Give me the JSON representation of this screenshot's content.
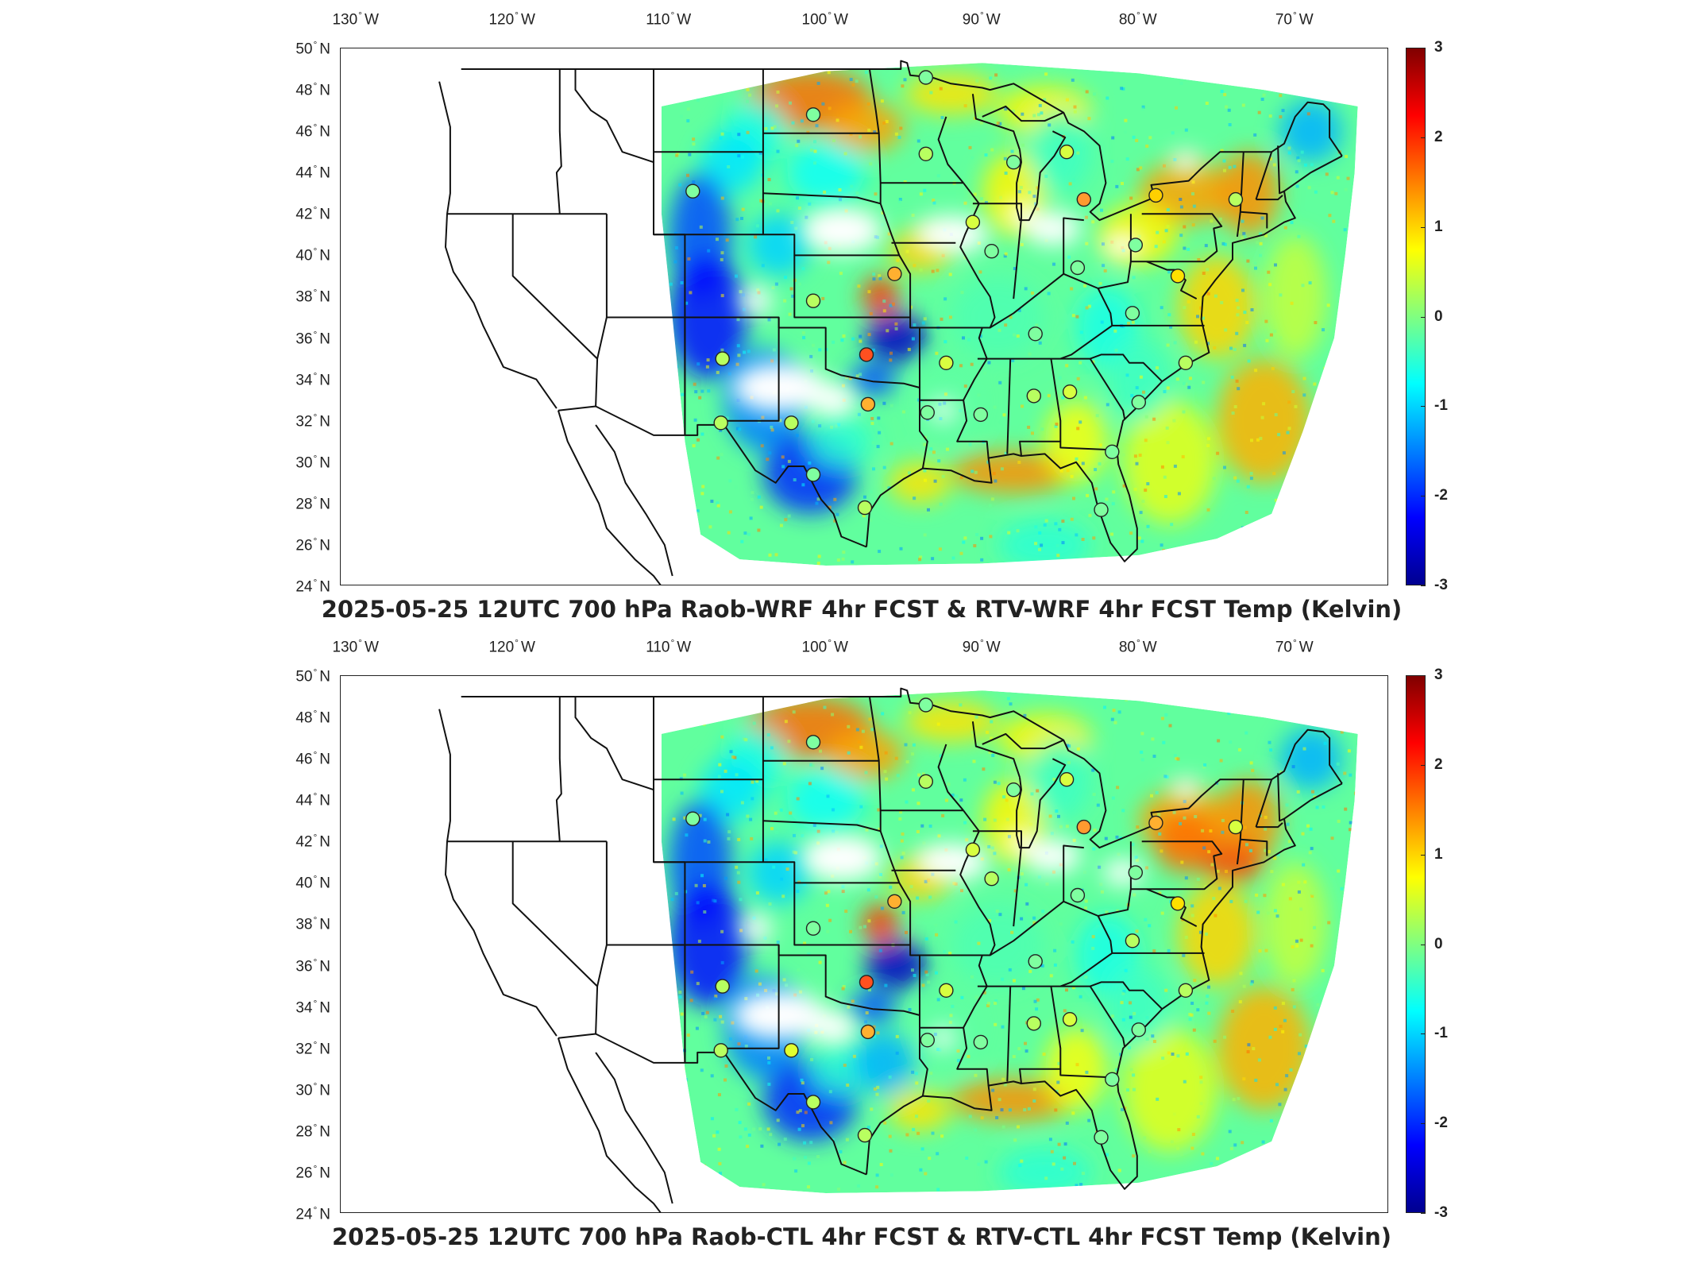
{
  "panels": [
    {
      "title": "2025-05-25 12UTC 700 hPa Raob-WRF 4hr FCST & RTV-WRF 4hr FCST Temp (Kelvin)",
      "stations": [
        {
          "lon": -100.8,
          "lat": 46.8,
          "color": "#7fffa0"
        },
        {
          "lon": -93.6,
          "lat": 48.6,
          "color": "#7fffa0"
        },
        {
          "lon": -93.6,
          "lat": 44.9,
          "color": "#b8ff60"
        },
        {
          "lon": -88.0,
          "lat": 44.5,
          "color": "#7fffa0"
        },
        {
          "lon": -84.6,
          "lat": 45.0,
          "color": "#d8ff40"
        },
        {
          "lon": -83.5,
          "lat": 42.7,
          "color": "#ff9a30"
        },
        {
          "lon": -78.9,
          "lat": 42.9,
          "color": "#ffd000"
        },
        {
          "lon": -73.8,
          "lat": 42.7,
          "color": "#b8ff60"
        },
        {
          "lon": -108.5,
          "lat": 43.1,
          "color": "#7fffa0"
        },
        {
          "lon": -90.6,
          "lat": 41.6,
          "color": "#d8ff40"
        },
        {
          "lon": -89.4,
          "lat": 40.2,
          "color": "#7fffa0"
        },
        {
          "lon": -80.2,
          "lat": 40.5,
          "color": "#7fffa0"
        },
        {
          "lon": -77.5,
          "lat": 39.0,
          "color": "#ffe000"
        },
        {
          "lon": -95.6,
          "lat": 39.1,
          "color": "#ffb030"
        },
        {
          "lon": -100.8,
          "lat": 37.8,
          "color": "#b8ff60"
        },
        {
          "lon": -86.6,
          "lat": 36.2,
          "color": "#7fffa0"
        },
        {
          "lon": -80.4,
          "lat": 37.2,
          "color": "#7fffa0"
        },
        {
          "lon": -83.9,
          "lat": 39.4,
          "color": "#7fffa0"
        },
        {
          "lon": -97.4,
          "lat": 35.2,
          "color": "#ff5020"
        },
        {
          "lon": -106.6,
          "lat": 35.0,
          "color": "#b8ff60"
        },
        {
          "lon": -92.3,
          "lat": 34.8,
          "color": "#d8ff40"
        },
        {
          "lon": -77.0,
          "lat": 34.8,
          "color": "#b8ff60"
        },
        {
          "lon": -97.3,
          "lat": 32.8,
          "color": "#ffb030"
        },
        {
          "lon": -102.2,
          "lat": 31.9,
          "color": "#b8ff60"
        },
        {
          "lon": -106.7,
          "lat": 31.9,
          "color": "#b8ff60"
        },
        {
          "lon": -93.5,
          "lat": 32.4,
          "color": "#7fffa0"
        },
        {
          "lon": -90.1,
          "lat": 32.3,
          "color": "#7fffa0"
        },
        {
          "lon": -86.7,
          "lat": 33.2,
          "color": "#b8ff60"
        },
        {
          "lon": -84.4,
          "lat": 33.4,
          "color": "#d8ff40"
        },
        {
          "lon": -80.0,
          "lat": 32.9,
          "color": "#7fffa0"
        },
        {
          "lon": -81.7,
          "lat": 30.5,
          "color": "#7fffa0"
        },
        {
          "lon": -100.8,
          "lat": 29.4,
          "color": "#7fffa0"
        },
        {
          "lon": -97.5,
          "lat": 27.8,
          "color": "#b8ff60"
        },
        {
          "lon": -82.4,
          "lat": 27.7,
          "color": "#7fffa0"
        }
      ]
    },
    {
      "title": "2025-05-25 12UTC 700 hPa Raob-CTL 4hr FCST & RTV-CTL 4hr FCST Temp (Kelvin)",
      "stations": [
        {
          "lon": -100.8,
          "lat": 46.8,
          "color": "#7fffa0"
        },
        {
          "lon": -93.6,
          "lat": 48.6,
          "color": "#7fffa0"
        },
        {
          "lon": -93.6,
          "lat": 44.9,
          "color": "#b8ff60"
        },
        {
          "lon": -88.0,
          "lat": 44.5,
          "color": "#7fffa0"
        },
        {
          "lon": -84.6,
          "lat": 45.0,
          "color": "#d8ff40"
        },
        {
          "lon": -83.5,
          "lat": 42.7,
          "color": "#ff9a30"
        },
        {
          "lon": -78.9,
          "lat": 42.9,
          "color": "#ffb030"
        },
        {
          "lon": -73.8,
          "lat": 42.7,
          "color": "#d8ff40"
        },
        {
          "lon": -108.5,
          "lat": 43.1,
          "color": "#7fffa0"
        },
        {
          "lon": -90.6,
          "lat": 41.6,
          "color": "#d8ff40"
        },
        {
          "lon": -89.4,
          "lat": 40.2,
          "color": "#b8ff60"
        },
        {
          "lon": -80.2,
          "lat": 40.5,
          "color": "#7fffa0"
        },
        {
          "lon": -77.5,
          "lat": 39.0,
          "color": "#ffe000"
        },
        {
          "lon": -95.6,
          "lat": 39.1,
          "color": "#ffb030"
        },
        {
          "lon": -100.8,
          "lat": 37.8,
          "color": "#7fffa0"
        },
        {
          "lon": -86.6,
          "lat": 36.2,
          "color": "#7fffa0"
        },
        {
          "lon": -80.4,
          "lat": 37.2,
          "color": "#b8ff60"
        },
        {
          "lon": -83.9,
          "lat": 39.4,
          "color": "#7fffa0"
        },
        {
          "lon": -97.4,
          "lat": 35.2,
          "color": "#ff5020"
        },
        {
          "lon": -106.6,
          "lat": 35.0,
          "color": "#b8ff60"
        },
        {
          "lon": -92.3,
          "lat": 34.8,
          "color": "#d8ff40"
        },
        {
          "lon": -77.0,
          "lat": 34.8,
          "color": "#b8ff60"
        },
        {
          "lon": -97.3,
          "lat": 32.8,
          "color": "#ffb030"
        },
        {
          "lon": -102.2,
          "lat": 31.9,
          "color": "#e0ff30"
        },
        {
          "lon": -106.7,
          "lat": 31.9,
          "color": "#b8ff60"
        },
        {
          "lon": -93.5,
          "lat": 32.4,
          "color": "#7fffa0"
        },
        {
          "lon": -90.1,
          "lat": 32.3,
          "color": "#7fffa0"
        },
        {
          "lon": -86.7,
          "lat": 33.2,
          "color": "#b8ff60"
        },
        {
          "lon": -84.4,
          "lat": 33.4,
          "color": "#d8ff40"
        },
        {
          "lon": -80.0,
          "lat": 32.9,
          "color": "#7fffa0"
        },
        {
          "lon": -81.7,
          "lat": 30.5,
          "color": "#7fffa0"
        },
        {
          "lon": -100.8,
          "lat": 29.4,
          "color": "#b8ff60"
        },
        {
          "lon": -97.5,
          "lat": 27.8,
          "color": "#b8ff60"
        },
        {
          "lon": -82.4,
          "lat": 27.7,
          "color": "#7fffa0"
        }
      ]
    }
  ],
  "lon_ticks": [
    {
      "value": -130,
      "label": "130",
      "hemi": "W"
    },
    {
      "value": -120,
      "label": "120",
      "hemi": "W"
    },
    {
      "value": -110,
      "label": "110",
      "hemi": "W"
    },
    {
      "value": -100,
      "label": "100",
      "hemi": "W"
    },
    {
      "value": -90,
      "label": "90",
      "hemi": "W"
    },
    {
      "value": -80,
      "label": "80",
      "hemi": "W"
    },
    {
      "value": -70,
      "label": "70",
      "hemi": "W"
    }
  ],
  "lat_ticks": [
    {
      "value": 50,
      "label": "50",
      "hemi": "N"
    },
    {
      "value": 48,
      "label": "48",
      "hemi": "N"
    },
    {
      "value": 46,
      "label": "46",
      "hemi": "N"
    },
    {
      "value": 44,
      "label": "44",
      "hemi": "N"
    },
    {
      "value": 42,
      "label": "42",
      "hemi": "N"
    },
    {
      "value": 40,
      "label": "40",
      "hemi": "N"
    },
    {
      "value": 38,
      "label": "38",
      "hemi": "N"
    },
    {
      "value": 36,
      "label": "36",
      "hemi": "N"
    },
    {
      "value": 34,
      "label": "34",
      "hemi": "N"
    },
    {
      "value": 32,
      "label": "32",
      "hemi": "N"
    },
    {
      "value": 30,
      "label": "30",
      "hemi": "N"
    },
    {
      "value": 28,
      "label": "28",
      "hemi": "N"
    },
    {
      "value": 26,
      "label": "26",
      "hemi": "N"
    },
    {
      "value": 24,
      "label": "24",
      "hemi": "N"
    }
  ],
  "colorbar": {
    "min": -3,
    "max": 3,
    "ticks": [
      "3",
      "2",
      "1",
      "0",
      "-1",
      "-2",
      "-3"
    ],
    "colormap": "jet"
  },
  "map_extent": {
    "lon_min": -131,
    "lon_max": -64,
    "lat_min": 24,
    "lat_max": 50
  }
}
